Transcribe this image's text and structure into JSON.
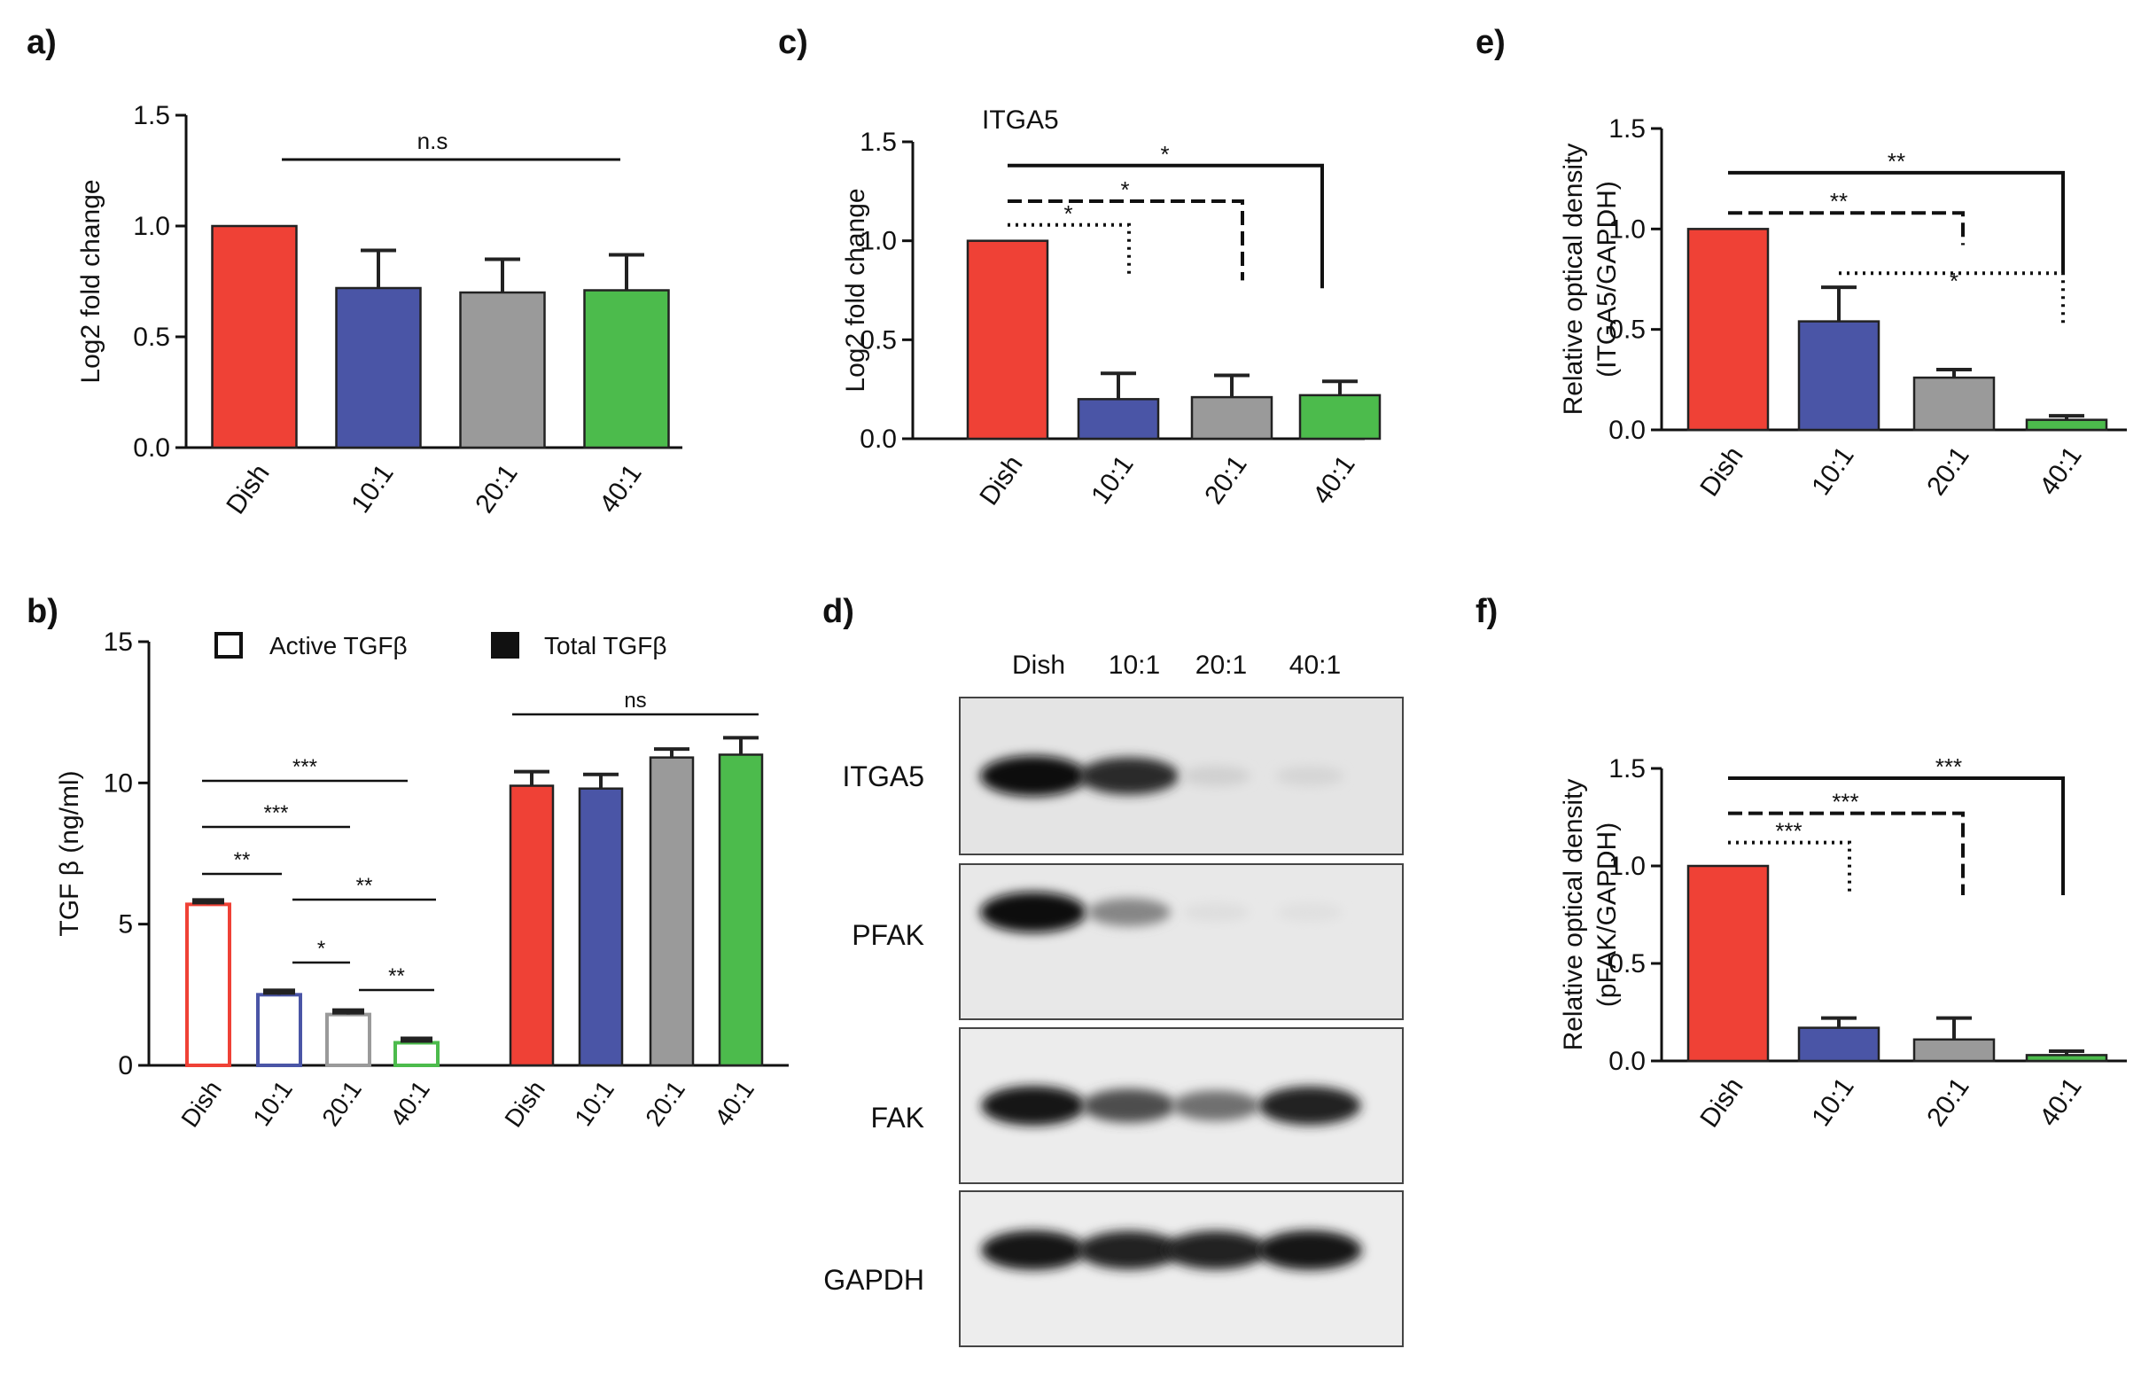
{
  "panel_letters": [
    "a)",
    "b)",
    "c)",
    "d)",
    "e)",
    "f)"
  ],
  "colors": {
    "Dish": "#ef4136",
    "10:1": "#4a55a6",
    "20:1": "#9a9a9a",
    "40:1": "#4cbb4c",
    "axis": "#111111"
  },
  "chart_data": [
    {
      "panel": "a)",
      "type": "bar",
      "ylabel": "Log2 fold change",
      "ylim": [
        0,
        1.5
      ],
      "yticks": [
        "0.0",
        "0.5",
        "1.0",
        "1.5"
      ],
      "categories": [
        "Dish",
        "10:1",
        "20:1",
        "40:1"
      ],
      "values": [
        1.0,
        0.72,
        0.7,
        0.71
      ],
      "errors": [
        0,
        0.17,
        0.15,
        0.16
      ],
      "annotations": [
        {
          "text": "n.s",
          "style": "solid",
          "from": 0,
          "to": 3
        }
      ]
    },
    {
      "panel": "b)",
      "type": "bar",
      "ylabel": "TGF β (ng/ml)",
      "ylim": [
        0,
        15
      ],
      "yticks": [
        "0",
        "5",
        "10",
        "15"
      ],
      "legend": [
        "Active TGFβ",
        "Total TGFβ"
      ],
      "groups": [
        {
          "name": "Active TGFβ",
          "fill": "open",
          "categories": [
            "Dish",
            "10:1",
            "20:1",
            "40:1"
          ],
          "values": [
            5.7,
            2.5,
            1.8,
            0.8
          ],
          "errors": [
            0.1,
            0.2,
            0.15,
            0.15
          ]
        },
        {
          "name": "Total TGFβ",
          "fill": "solid",
          "categories": [
            "Dish",
            "10:1",
            "20:1",
            "40:1"
          ],
          "values": [
            9.9,
            9.8,
            10.9,
            11.0
          ],
          "errors": [
            0.5,
            0.5,
            0.3,
            0.6
          ]
        }
      ],
      "annotations": [
        {
          "text": "***",
          "from": 0,
          "to": 3
        },
        {
          "text": "***",
          "from": 0,
          "to": 2
        },
        {
          "text": "**",
          "from": 0,
          "to": 1
        },
        {
          "text": "**",
          "from": 2,
          "to": 4
        },
        {
          "text": "*",
          "from": 1,
          "to": 2
        },
        {
          "text": "**",
          "from": 2,
          "to": 3
        },
        {
          "text": "ns",
          "from": 4,
          "to": 7
        }
      ]
    },
    {
      "panel": "c)",
      "type": "bar",
      "title": "ITGA5",
      "ylabel": "Log2 fold change",
      "ylim": [
        0,
        1.5
      ],
      "yticks": [
        "0.0",
        "0.5",
        "1.0",
        "1.5"
      ],
      "categories": [
        "Dish",
        "10:1",
        "20:1",
        "40:1"
      ],
      "values": [
        1.0,
        0.2,
        0.21,
        0.22
      ],
      "errors": [
        0,
        0.13,
        0.11,
        0.07
      ],
      "annotations": [
        {
          "text": "*",
          "style": "dotted",
          "to": 1
        },
        {
          "text": "*",
          "style": "dashed",
          "to": 2
        },
        {
          "text": "*",
          "style": "solid",
          "to": 3
        }
      ]
    },
    {
      "panel": "e)",
      "type": "bar",
      "ylabel": "Relative optical density",
      "ylabel2": "(ITGA5/GAPDH)",
      "ylim": [
        0,
        1.5
      ],
      "yticks": [
        "0.0",
        "0.5",
        "1.0",
        "1.5"
      ],
      "categories": [
        "Dish",
        "10:1",
        "20:1",
        "40:1"
      ],
      "values": [
        1.0,
        0.54,
        0.26,
        0.05
      ],
      "errors": [
        0,
        0.17,
        0.04,
        0.02
      ],
      "annotations": [
        {
          "text": "**",
          "style": "solid",
          "from": 0,
          "to": 3
        },
        {
          "text": "**",
          "style": "dashed",
          "from": 0,
          "to": 2
        },
        {
          "text": "*",
          "style": "dotted",
          "from": 1,
          "to": 3
        }
      ]
    },
    {
      "panel": "f)",
      "type": "bar",
      "ylabel": "Relative optical density",
      "ylabel2": "(pFAK/GAPDH)",
      "ylim": [
        0,
        1.5
      ],
      "yticks": [
        "0.0",
        "0.5",
        "1.0",
        "1.5"
      ],
      "categories": [
        "Dish",
        "10:1",
        "20:1",
        "40:1"
      ],
      "values": [
        1.0,
        0.17,
        0.11,
        0.03
      ],
      "errors": [
        0,
        0.05,
        0.11,
        0.02
      ],
      "annotations": [
        {
          "text": "***",
          "style": "solid",
          "to": 3
        },
        {
          "text": "***",
          "style": "dashed",
          "to": 2
        },
        {
          "text": "***",
          "style": "dotted",
          "to": 1
        }
      ]
    }
  ],
  "western_blot": {
    "panel": "d)",
    "lanes": [
      "Dish",
      "10:1",
      "20:1",
      "40:1"
    ],
    "rows": [
      {
        "label": "ITGA5",
        "intensities": [
          1.0,
          0.85,
          0.12,
          0.1
        ]
      },
      {
        "label": "PFAK",
        "intensities": [
          1.0,
          0.45,
          0.06,
          0.05
        ]
      },
      {
        "label": "FAK",
        "intensities": [
          0.95,
          0.7,
          0.55,
          0.9
        ]
      },
      {
        "label": "GAPDH",
        "intensities": [
          0.95,
          0.9,
          0.9,
          0.95
        ]
      }
    ]
  }
}
